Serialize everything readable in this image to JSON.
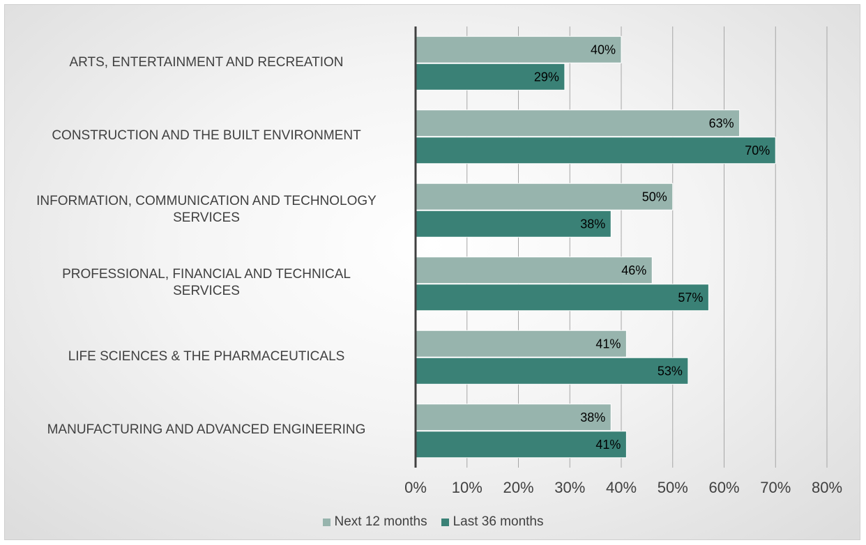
{
  "chart_data": {
    "type": "bar",
    "orientation": "horizontal",
    "categories": [
      "ARTS, ENTERTAINMENT AND RECREATION",
      "CONSTRUCTION AND THE BUILT ENVIRONMENT",
      "INFORMATION, COMMUNICATION AND TECHNOLOGY\nSERVICES",
      "PROFESSIONAL, FINANCIAL AND TECHNICAL\nSERVICES",
      "LIFE SCIENCES & THE PHARMACEUTICALS",
      "MANUFACTURING AND ADVANCED ENGINEERING"
    ],
    "series": [
      {
        "name": "Next 12 months",
        "color": "#97b4ad",
        "values": [
          40,
          63,
          50,
          46,
          41,
          38
        ],
        "labels": [
          "40%",
          "63%",
          "50%",
          "46%",
          "41%",
          "38%"
        ]
      },
      {
        "name": "Last 36 months",
        "color": "#3a8176",
        "values": [
          29,
          70,
          38,
          57,
          53,
          41
        ],
        "labels": [
          "29%",
          "70%",
          "38%",
          "57%",
          "53%",
          "41%"
        ]
      }
    ],
    "xlim": [
      0,
      80
    ],
    "xticks": [
      0,
      10,
      20,
      30,
      40,
      50,
      60,
      70,
      80
    ],
    "xtick_labels": [
      "0%",
      "10%",
      "20%",
      "30%",
      "40%",
      "50%",
      "60%",
      "70%",
      "80%"
    ],
    "grid": true,
    "legend_position": "bottom"
  }
}
